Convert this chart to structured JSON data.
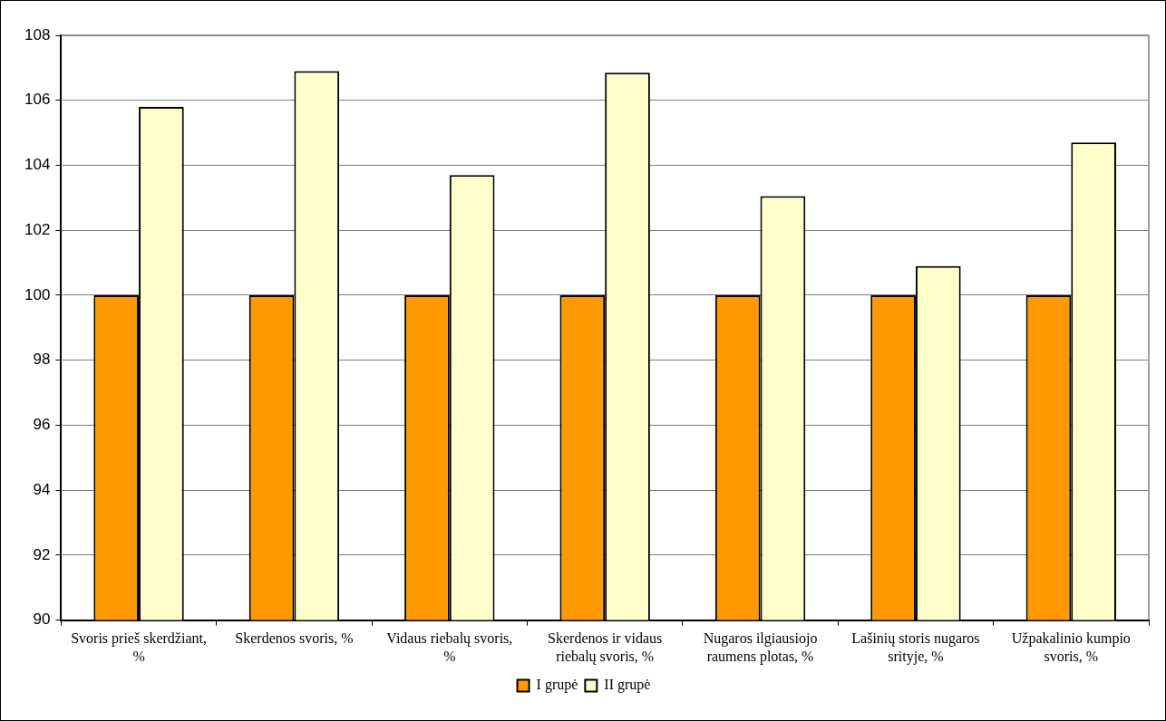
{
  "chart_data": {
    "type": "bar",
    "categories": [
      "Svoris prieš skerdžiant, %",
      "Skerdenos svoris, %",
      "Vidaus riebalų svoris, %",
      "Skerdenos ir vidaus riebalų svoris, %",
      "Nugaros ilgiausiojo raumens plotas, %",
      "Lašinių storis nugaros srityje, %",
      "Užpakalinio kumpio svoris, %"
    ],
    "series": [
      {
        "name": "I grupė",
        "color": "#ff9900",
        "values": [
          100,
          100,
          100,
          100,
          100,
          100,
          100
        ]
      },
      {
        "name": "II grupė",
        "color": "#ffffcc",
        "values": [
          105.8,
          106.9,
          103.7,
          106.85,
          103.05,
          100.9,
          104.7
        ]
      }
    ],
    "ylim": [
      90,
      108
    ],
    "yticks": [
      90,
      92,
      94,
      96,
      98,
      100,
      102,
      104,
      106,
      108
    ],
    "grid": "y",
    "legend": "bottom"
  }
}
